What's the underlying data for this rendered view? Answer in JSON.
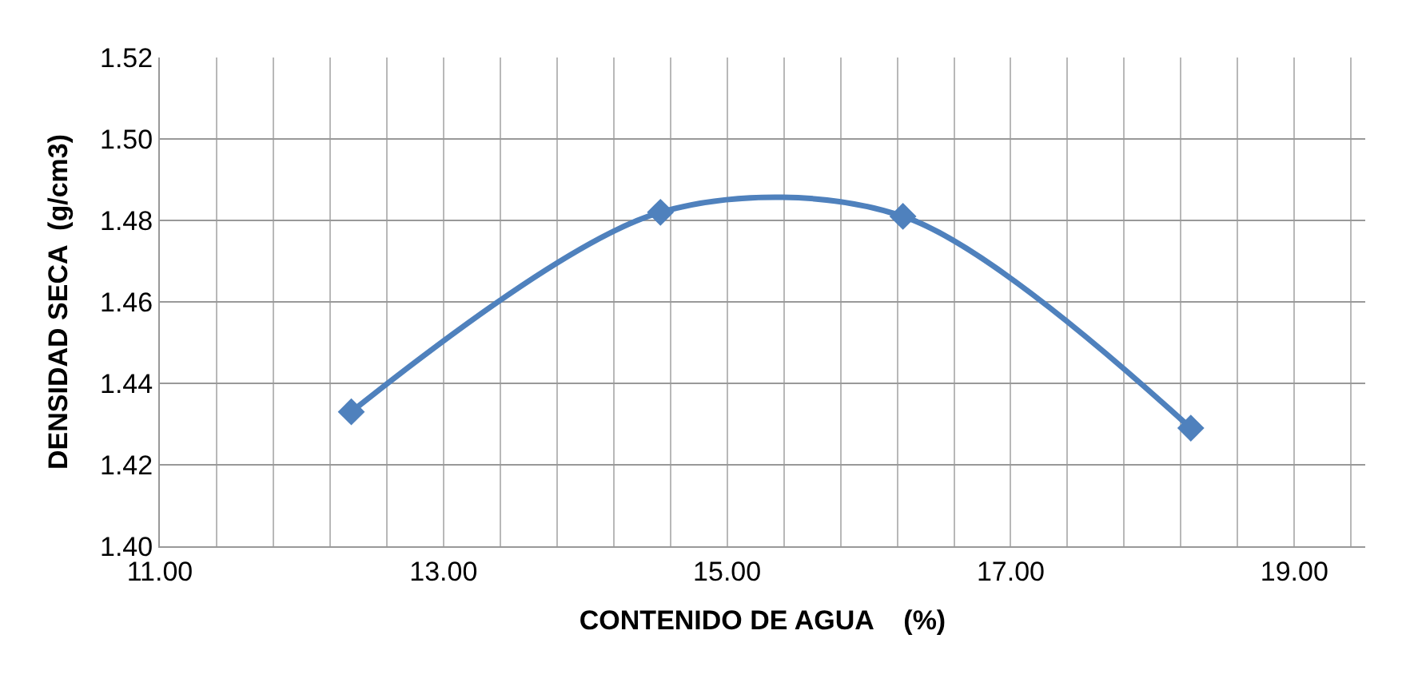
{
  "chart_data": {
    "type": "line",
    "xlabel": "CONTENIDO DE AGUA    (%)",
    "ylabel": "DENSIDAD SECA  (g/cm3)",
    "x": [
      12.35,
      14.53,
      16.24,
      18.27
    ],
    "series": [
      {
        "color": "#4f81bd",
        "values": [
          1.433,
          1.482,
          1.481,
          1.429
        ]
      }
    ],
    "marker": "diamond",
    "line_style": "solid",
    "grid": true,
    "xlim": [
      11,
      19.5
    ],
    "xticks": [
      "11.00",
      {
        "value": 11.4,
        "label": null
      },
      {
        "value": 11.8,
        "label": null
      },
      {
        "value": 12.2,
        "label": null
      },
      {
        "value": 12.6,
        "label": null
      },
      {
        "value": 13,
        "label": "13.00"
      },
      {
        "value": 13.4,
        "label": null
      },
      {
        "value": 13.8,
        "label": null
      },
      {
        "value": 14.2,
        "label": null
      },
      {
        "value": 14.6,
        "label": null
      },
      {
        "value": 15,
        "label": "15.00"
      },
      {
        "value": 15.4,
        "label": null
      },
      {
        "value": 15.8,
        "label": null
      },
      {
        "value": 16.2,
        "label": null
      },
      {
        "value": 16.6,
        "label": null
      },
      {
        "value": 17,
        "label": "17.00"
      },
      {
        "value": 17.4,
        "label": null
      },
      {
        "value": 17.8,
        "label": null
      },
      {
        "value": 18.2,
        "label": null
      },
      {
        "value": 18.6,
        "label": null
      },
      {
        "value": 19,
        "label": "19.00"
      },
      {
        "value": 19.4,
        "label": null
      }
    ],
    "ylim": [
      1.4,
      1.52
    ],
    "yticks": [
      {
        "value": 1.4,
        "label": "1.40"
      },
      {
        "value": 1.42,
        "label": "1.42"
      },
      {
        "value": 1.44,
        "label": "1.44"
      },
      {
        "value": 1.46,
        "label": "1.46"
      },
      {
        "value": 1.48,
        "label": "1.48"
      },
      {
        "value": 1.5,
        "label": "1.50"
      },
      {
        "value": 1.52,
        "label": "1.52"
      }
    ]
  }
}
